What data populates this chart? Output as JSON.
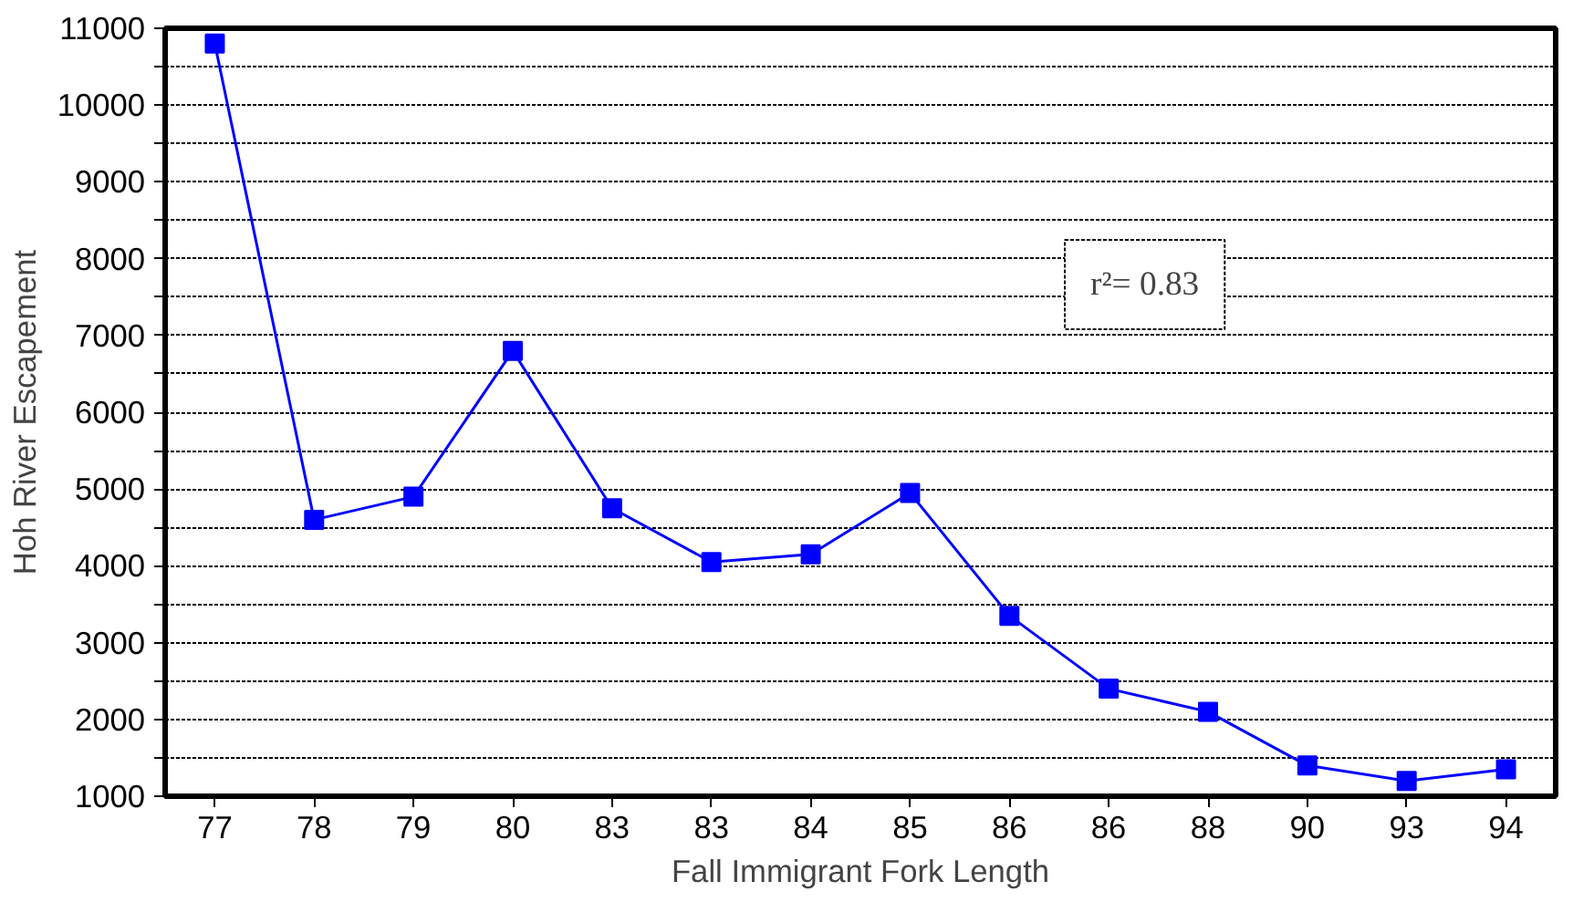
{
  "chart_data": {
    "type": "line",
    "xlabel": "Fall Immigrant Fork Length",
    "ylabel": "Hoh River Escapement",
    "categories": [
      "77",
      "78",
      "79",
      "80",
      "83",
      "83",
      "84",
      "85",
      "86",
      "86",
      "88",
      "90",
      "93",
      "94"
    ],
    "series": [
      {
        "color": "#0000ff",
        "values": [
          10800,
          4600,
          4900,
          6800,
          4750,
          4050,
          4150,
          4950,
          3350,
          2400,
          2100,
          1400,
          1200,
          1350
        ]
      }
    ],
    "ylim": [
      1000,
      11000
    ],
    "yticks": [
      1000,
      {
        "value": 1500,
        "label": null
      },
      2000,
      {
        "value": 2500,
        "label": null
      },
      3000,
      {
        "value": 3500,
        "label": null
      },
      4000,
      {
        "value": 4500,
        "label": null
      },
      5000,
      {
        "value": 5500,
        "label": null
      },
      6000,
      {
        "value": 6500,
        "label": null
      },
      7000,
      {
        "value": 7500,
        "label": null
      },
      8000,
      {
        "value": 8500,
        "label": null
      },
      9000,
      {
        "value": 9500,
        "label": null
      },
      10000,
      {
        "value": 10500,
        "label": null
      },
      11000
    ],
    "annotations": [
      "r²= 0.83"
    ],
    "grid": "y",
    "marker": "square",
    "line_style": "solid"
  }
}
